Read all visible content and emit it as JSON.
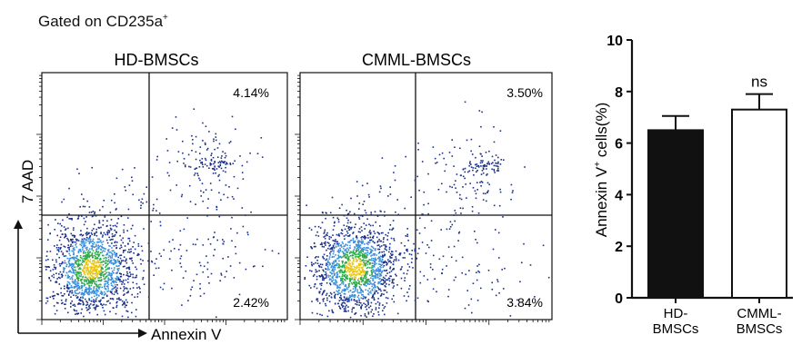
{
  "gating_label": {
    "text": "Gated on CD235a",
    "superscript": "+"
  },
  "flow": {
    "y_axis_label": "7 AAD",
    "x_axis_label": "Annexin V",
    "panels": [
      {
        "title": "HD-BMSCs",
        "upper_right_pct": "4.14%",
        "lower_right_pct": "2.42%"
      },
      {
        "title": "CMML-BMSCs",
        "upper_right_pct": "3.50%",
        "lower_right_pct": "3.84%"
      }
    ]
  },
  "chart_data": {
    "type": "bar",
    "categories": [
      [
        "HD-",
        "BMSCs"
      ],
      [
        "CMML-",
        "BMSCs"
      ]
    ],
    "values": [
      6.5,
      7.3
    ],
    "error": [
      0.55,
      0.6
    ],
    "bar_fill": [
      "#111111",
      "#ffffff"
    ],
    "ylabel": "Annexin V",
    "ylabel_superscript": "+",
    "ylabel_suffix": " cells(%)",
    "ylim": [
      0,
      10
    ],
    "yticks": [
      0,
      2,
      4,
      6,
      8,
      10
    ],
    "annotation": "ns"
  },
  "colors": {
    "dot_main": "#1a2f8a",
    "dot_mid": "#3b8fd9",
    "dot_hot": "#2ea84a",
    "dot_core": "#e8c619"
  }
}
